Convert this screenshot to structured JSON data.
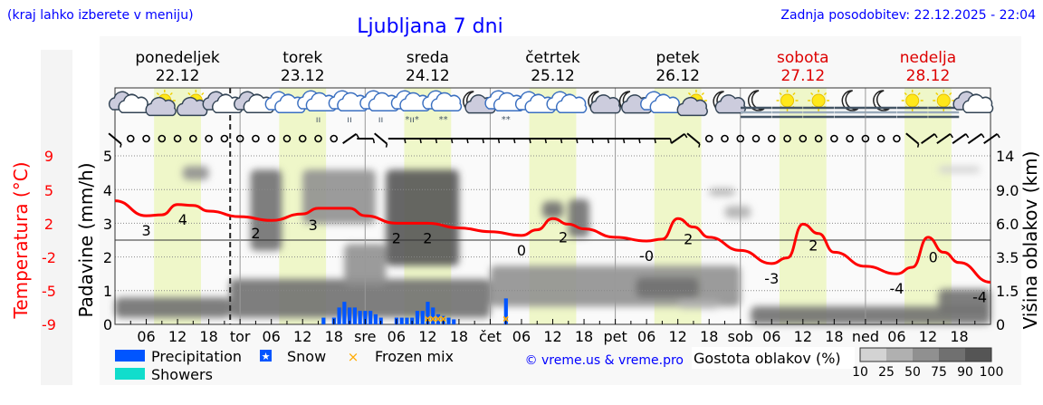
{
  "header": {
    "hint": "(kraj lahko izberete v meniju)",
    "title": "Ljubljana 7 dni",
    "updated": "Zadnja posodobitev: 22.12.2025 - 22:04"
  },
  "days": [
    {
      "name": "ponedeljek",
      "date": "22.12",
      "short": "",
      "weekend": false
    },
    {
      "name": "torek",
      "date": "23.12",
      "short": "tor",
      "weekend": false
    },
    {
      "name": "sreda",
      "date": "24.12",
      "short": "sre",
      "weekend": false
    },
    {
      "name": "četrtek",
      "date": "25.12",
      "short": "čet",
      "weekend": false
    },
    {
      "name": "petek",
      "date": "26.12",
      "short": "pet",
      "weekend": false
    },
    {
      "name": "sobota",
      "date": "27.12",
      "short": "sob",
      "weekend": true
    },
    {
      "name": "nedelja",
      "date": "28.12",
      "short": "ned",
      "weekend": true
    }
  ],
  "hour_labels": [
    "06",
    "12",
    "18"
  ],
  "colors": {
    "title": "#0000ff",
    "temperature": "#ff0000",
    "precipitation": "#0055ff",
    "showers": "#11ddcc",
    "frozen": "#ffaa00",
    "daylight": "#eff7c9",
    "weekend": "#dd0000"
  },
  "chart_data": {
    "type": "meteogram",
    "now_hour": 22.1,
    "daylight_hours": [
      7.5,
      16.5
    ],
    "left_axis_temperature": {
      "label": "Temperatura (°C)",
      "ticks": [
        "9",
        "5",
        "2",
        "-2",
        "-5",
        "-9"
      ],
      "range": [
        -9,
        9
      ]
    },
    "left_axis_precip": {
      "label": "Padavine (mm/h)",
      "ticks": [
        "0",
        "1",
        "2",
        "3",
        "4",
        "5"
      ],
      "range": [
        0,
        5
      ]
    },
    "right_axis_clouds": {
      "label": "Višina oblakov (km)",
      "ticks": [
        "0",
        "1.5",
        "3.5",
        "6.0",
        "9.0",
        "14"
      ],
      "tick_values": [
        0,
        1.5,
        3.5,
        6,
        9,
        14
      ]
    },
    "temperature": {
      "hours": [
        0,
        6,
        9,
        12,
        15,
        18,
        24,
        30,
        36,
        39,
        42,
        45,
        48,
        54,
        60,
        66,
        72,
        78,
        81,
        84,
        87,
        90,
        96,
        102,
        105,
        108,
        111,
        114,
        120,
        126,
        129,
        132,
        135,
        138,
        144,
        150,
        153,
        156,
        159,
        162,
        168
      ],
      "values": [
        4.2,
        2.6,
        2.7,
        3.8,
        3.7,
        3.1,
        2.5,
        2.1,
        2.8,
        3.4,
        3.4,
        3.4,
        2.6,
        1.8,
        1.8,
        1.3,
        0.9,
        0.5,
        1.1,
        2.3,
        1.7,
        1.2,
        0.3,
        -0.1,
        0.1,
        2.3,
        1.4,
        0.3,
        -1.1,
        -2.5,
        -1.9,
        1.7,
        0.7,
        -1.3,
        -2.8,
        -3.6,
        -2.9,
        0.3,
        -1.3,
        -2.4,
        -4.5
      ]
    },
    "temperature_labels": [
      {
        "hour": 6,
        "text": "3"
      },
      {
        "hour": 13,
        "text": "4"
      },
      {
        "hour": 27,
        "text": "2"
      },
      {
        "hour": 38,
        "text": "3"
      },
      {
        "hour": 54,
        "text": "2"
      },
      {
        "hour": 60,
        "text": "2"
      },
      {
        "hour": 78,
        "text": "0"
      },
      {
        "hour": 86,
        "text": "2"
      },
      {
        "hour": 102,
        "text": "-0"
      },
      {
        "hour": 110,
        "text": "2"
      },
      {
        "hour": 126,
        "text": "-3"
      },
      {
        "hour": 134,
        "text": "2"
      },
      {
        "hour": 150,
        "text": "-4"
      },
      {
        "hour": 157,
        "text": "0"
      },
      {
        "hour": 168,
        "text": "-4"
      }
    ],
    "precipitation": {
      "hours": [
        40,
        42,
        43,
        44,
        45,
        46,
        47,
        48,
        49,
        50,
        51,
        54,
        55,
        56,
        57,
        58,
        59,
        60,
        61,
        62,
        63,
        64,
        65,
        75
      ],
      "values": [
        0.2,
        0.2,
        0.5,
        0.67,
        0.5,
        0.5,
        0.4,
        0.4,
        0.4,
        0.3,
        0.2,
        0.2,
        0.2,
        0.2,
        0.2,
        0.4,
        0.4,
        0.67,
        0.5,
        0.3,
        0.25,
        0.2,
        0.15,
        0.77
      ]
    },
    "frozen_mix_hours": [
      60,
      61,
      62,
      63,
      75
    ],
    "clouds": [
      {
        "from": 0,
        "to": 22,
        "base": 0.3,
        "top": 1.2,
        "density": 75
      },
      {
        "from": 13,
        "to": 18,
        "base": 10.5,
        "top": 12.5,
        "density": 50
      },
      {
        "from": 22,
        "to": 72,
        "base": 0.3,
        "top": 2.2,
        "density": 75
      },
      {
        "from": 26,
        "to": 32,
        "base": 4.0,
        "top": 12.0,
        "density": 75
      },
      {
        "from": 36,
        "to": 50,
        "base": 6.0,
        "top": 12.0,
        "density": 50
      },
      {
        "from": 44,
        "to": 52,
        "base": 1.8,
        "top": 4.5,
        "density": 50
      },
      {
        "from": 52,
        "to": 66,
        "base": 3.0,
        "top": 12.0,
        "density": 90
      },
      {
        "from": 72,
        "to": 120,
        "base": 0.8,
        "top": 3.0,
        "density": 50
      },
      {
        "from": 100,
        "to": 112,
        "base": 1.2,
        "top": 2.3,
        "density": 75
      },
      {
        "from": 82,
        "to": 86,
        "base": 6.5,
        "top": 8.0,
        "density": 75
      },
      {
        "from": 87,
        "to": 91,
        "base": 5.0,
        "top": 8.2,
        "density": 75
      },
      {
        "from": 108,
        "to": 116,
        "base": 0.7,
        "top": 1.1,
        "density": 25
      },
      {
        "from": 114,
        "to": 119,
        "base": 8.5,
        "top": 9.3,
        "density": 25
      },
      {
        "from": 117,
        "to": 122,
        "base": 6.5,
        "top": 7.6,
        "density": 25
      },
      {
        "from": 122,
        "to": 168,
        "base": 0.0,
        "top": 0.8,
        "density": 75
      },
      {
        "from": 158,
        "to": 168,
        "base": 0.5,
        "top": 1.6,
        "density": 75
      },
      {
        "from": 158,
        "to": 166,
        "base": 11.5,
        "top": 12.5,
        "density": 10
      }
    ],
    "weather_icons": [
      "cloudy",
      "sun-cloud",
      "sun-cloud",
      "cloudy",
      "cloudy",
      "cloudy-blue",
      "rain-cloud",
      "rain-cloud",
      "rain-cloud",
      "sleet-cloud",
      "snow-cloud",
      "moon-cloud",
      "snow-cloud",
      "cloudy-blue",
      "cloudy-blue",
      "moon-cloud",
      "moon-cloud",
      "cloudy-blue",
      "sun-cloud",
      "moon-cloud",
      "moon-fog",
      "sun-fog",
      "sun-fog",
      "moon-fog",
      "moon-fog",
      "sun-fog",
      "sun-fog",
      "cloudy"
    ],
    "wind": [
      "NW",
      "calm",
      "calm",
      "calm",
      "calm",
      "calm",
      "calm",
      "calm",
      "calm",
      "calm",
      "calm",
      "calm",
      "calm",
      "calm",
      "calm",
      "SW",
      "E",
      "NW",
      "E",
      "E",
      "E",
      "E",
      "E",
      "E",
      "E",
      "E",
      "E",
      "E",
      "E",
      "E",
      "E",
      "E",
      "E",
      "E",
      "E",
      "E",
      "SW",
      "NW",
      "calm",
      "calm",
      "calm",
      "calm",
      "calm",
      "calm",
      "calm",
      "calm",
      "calm",
      "calm",
      "calm",
      "calm",
      "calm",
      "NW",
      "SW",
      "SW",
      "SW",
      "SW",
      "SW"
    ]
  },
  "legend": {
    "precipitation": "Precipitation",
    "snow": "Snow",
    "frozen_mix": "Frozen mix",
    "showers": "Showers",
    "credit": "© vreme.us & vreme.pro",
    "cloud_density_title": "Gostota oblakov (%)",
    "cloud_density_ticks": [
      "10",
      "25",
      "50",
      "75",
      "90",
      "100"
    ]
  }
}
